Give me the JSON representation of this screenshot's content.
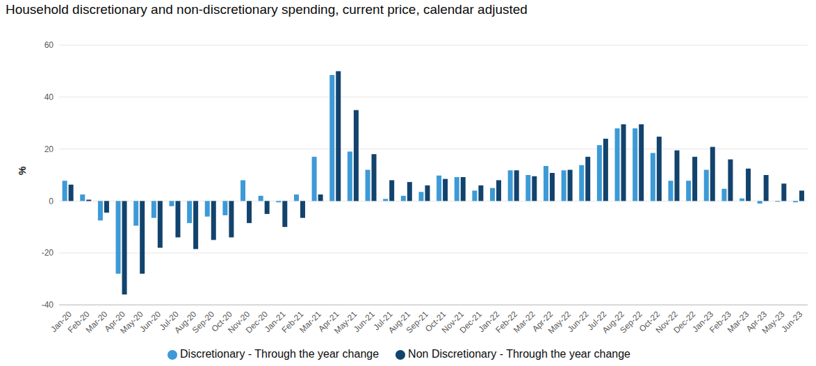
{
  "chart_data": {
    "type": "bar",
    "title": "Household discretionary and non-discretionary spending, current price, calendar adjusted",
    "y_label": "%",
    "categories": [
      "Jan-20",
      "Feb-20",
      "Mar-20",
      "Apr-20",
      "May-20",
      "Jun-20",
      "Jul-20",
      "Aug-20",
      "Sep-20",
      "Oct-20",
      "Nov-20",
      "Dec-20",
      "Jan-21",
      "Feb-21",
      "Mar-21",
      "Apr-21",
      "May-21",
      "Jun-21",
      "Jul-21",
      "Aug-21",
      "Sep-21",
      "Oct-21",
      "Nov-21",
      "Dec-21",
      "Jan-22",
      "Feb-22",
      "Mar-22",
      "Apr-22",
      "May-22",
      "Jun-22",
      "Jul-22",
      "Aug-22",
      "Sep-22",
      "Oct-22",
      "Nov-22",
      "Dec-22",
      "Jan-23",
      "Feb-23",
      "Mar-23",
      "Apr-23",
      "May-23",
      "Jun-23"
    ],
    "series": [
      {
        "name": "Discretionary - Through the year change",
        "color": "#3d9ad6",
        "values": [
          7.8,
          2.5,
          -7.5,
          -28,
          -9.5,
          -6.5,
          -2,
          -8.5,
          -6,
          -5.5,
          8,
          2,
          -0.5,
          2.5,
          17,
          48.5,
          19,
          12,
          0.8,
          2,
          3.5,
          9.8,
          9.2,
          4,
          5,
          11.8,
          10,
          13.5,
          11.8,
          13.8,
          21.5,
          28,
          28,
          18.5,
          7.8,
          7.8,
          12,
          4.7,
          1,
          -1,
          -0.3,
          -0.5
        ]
      },
      {
        "name": "Non Discretionary - Through the year change",
        "color": "#12436d",
        "values": [
          6.3,
          0.5,
          -4.5,
          -36,
          -28,
          -18,
          -14,
          -18.5,
          -15,
          -14,
          -8.5,
          -5,
          -10,
          -6.5,
          2.5,
          50,
          35,
          18,
          8,
          7.3,
          6,
          8.5,
          9.2,
          6,
          8,
          11.8,
          9.5,
          10.8,
          12,
          17,
          24,
          29.5,
          29.5,
          24.8,
          19.5,
          17,
          20.8,
          16,
          12.5,
          10,
          6.7,
          4
        ]
      }
    ],
    "ylim": [
      -40,
      60
    ],
    "yticks": [
      -40,
      -20,
      0,
      20,
      40,
      60
    ],
    "grid": true,
    "legend": "bottom"
  }
}
